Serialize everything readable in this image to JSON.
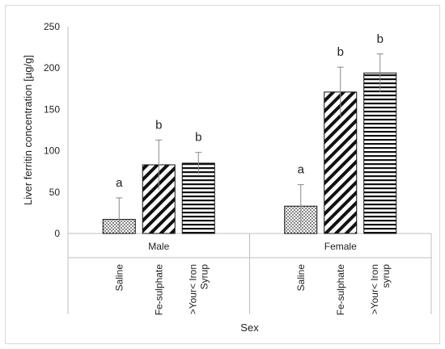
{
  "chart_data": {
    "type": "bar",
    "title": "",
    "xlabel": "Sex",
    "ylabel": "Liver ferritin concentration [µg/g]",
    "ylim": [
      0,
      250
    ],
    "yticks": [
      "0",
      "50",
      "100",
      "150",
      "200",
      "250"
    ],
    "groups": [
      {
        "name": "Male",
        "bars": [
          {
            "label": "Saline",
            "value": 17,
            "error": 26,
            "letter": "a",
            "pattern": "dots"
          },
          {
            "label": "Fe-sulphate",
            "value": 83,
            "error": 30,
            "letter": "b",
            "pattern": "diagonal"
          },
          {
            "label": ">Your< Iron Syrup",
            "label_lines": [
              ">Your< Iron",
              "Syrup"
            ],
            "value": 85,
            "error": 13,
            "letter": "b",
            "pattern": "horizontal"
          }
        ]
      },
      {
        "name": "Female",
        "bars": [
          {
            "label": "Saline",
            "value": 33,
            "error": 26,
            "letter": "a",
            "pattern": "dots"
          },
          {
            "label": "Fe-sulphate",
            "value": 171,
            "error": 30,
            "letter": "b",
            "pattern": "diagonal"
          },
          {
            "label": ">Your< Iron syrup",
            "label_lines": [
              ">Your< Iron",
              "syrup"
            ],
            "value": 194,
            "error": 23,
            "letter": "b",
            "pattern": "horizontal"
          }
        ]
      }
    ],
    "grid": false,
    "legend": "none"
  }
}
